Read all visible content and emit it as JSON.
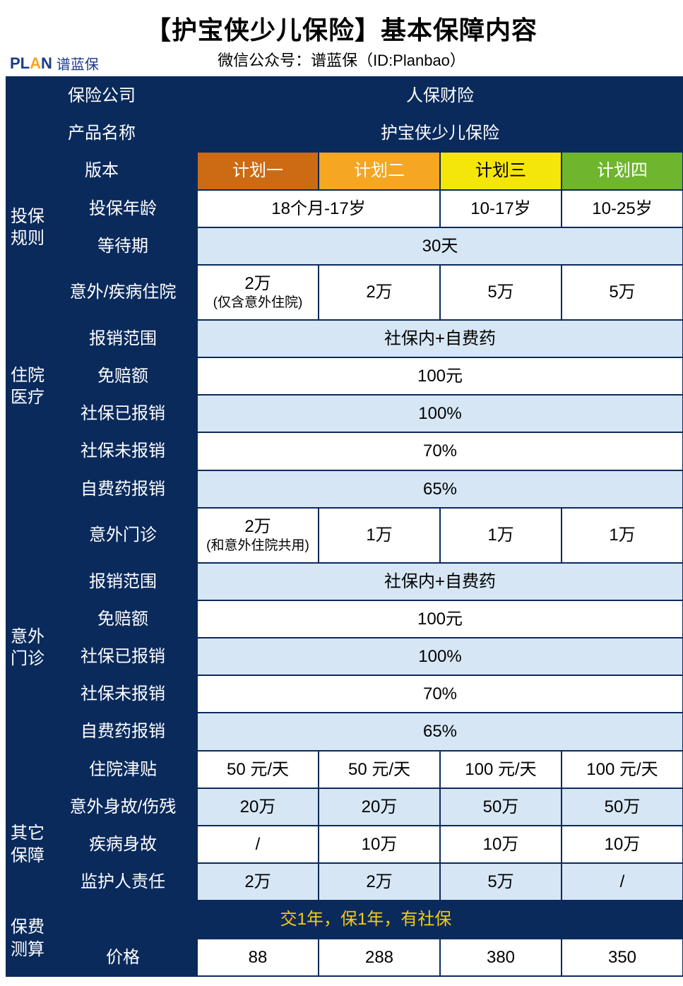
{
  "header": {
    "title": "【护宝侠少儿保险】基本保障内容",
    "subtitle": "微信公众号：谱蓝保（ID:Planbao）",
    "logo_en_1": "PL",
    "logo_en_2": "A",
    "logo_en_3": "N",
    "logo_cn": "谱蓝保"
  },
  "labels": {
    "insurer": "保险公司",
    "product": "产品名称",
    "version": "版本",
    "enroll_section": "投保规则",
    "enroll_age": "投保年龄",
    "wait_period": "等待期",
    "hosp_section": "住院医疗",
    "hosp_accident_illness": "意外/疾病住院",
    "reimburse_scope": "报销范围",
    "deductible": "免赔额",
    "after_social": "社保已报销",
    "no_social": "社保未报销",
    "selfpay_drug": "自费药报销",
    "outpatient_section": "意外门诊",
    "outpatient_accident": "意外门诊",
    "hosp_allowance": "住院津贴",
    "other_section": "其它保障",
    "accident_death": "意外身故/伤残",
    "illness_death": "疾病身故",
    "guardian_liab": "监护人责任",
    "premium_section": "保费测算",
    "premium_note": "交1年，保1年，有社保",
    "price": "价格"
  },
  "values": {
    "insurer": "人保财险",
    "product": "护宝侠少儿保险",
    "plans": {
      "p1": "计划一",
      "p2": "计划二",
      "p3": "计划三",
      "p4": "计划四"
    },
    "age_p12": "18个月-17岁",
    "age_p3": "10-17岁",
    "age_p4": "10-25岁",
    "wait": "30天",
    "hosp_p1_line1": "2万",
    "hosp_p1_line2": "(仅含意外住院)",
    "hosp_p2": "2万",
    "hosp_p3": "5万",
    "hosp_p4": "5万",
    "scope": "社保内+自费药",
    "deductible": "100元",
    "after_social": "100%",
    "no_social": "70%",
    "selfpay": "65%",
    "out_p1_line1": "2万",
    "out_p1_line2": "(和意外住院共用)",
    "out_p2": "1万",
    "out_p3": "1万",
    "out_p4": "1万",
    "allow_p1": "50  元/天",
    "allow_p2": "50  元/天",
    "allow_p3": "100  元/天",
    "allow_p4": "100  元/天",
    "acc_death_p1": "20万",
    "acc_death_p2": "20万",
    "acc_death_p3": "50万",
    "acc_death_p4": "50万",
    "ill_death_p1": "/",
    "ill_death_p2": "10万",
    "ill_death_p3": "10万",
    "ill_death_p4": "10万",
    "guardian_p1": "2万",
    "guardian_p2": "2万",
    "guardian_p3": "5万",
    "guardian_p4": "/",
    "price_p1": "88",
    "price_p2": "288",
    "price_p3": "380",
    "price_p4": "350"
  },
  "style": {
    "colors": {
      "navy": "#0a2a5c",
      "ltblue": "#d6e6f5",
      "white": "#ffffff",
      "plan1": "#cc6b14",
      "plan2": "#f5a623",
      "plan3": "#f5e60a",
      "plan4": "#6fb52e",
      "yellow_text": "#f5cc0a",
      "border": "#0a2a5c"
    },
    "font_family": "Microsoft YaHei",
    "title_fontsize": 36,
    "cell_fontsize": 24,
    "small_fontsize": 19,
    "border_width": 2,
    "col_widths": {
      "side": 60,
      "label": 210,
      "plan": 172
    }
  }
}
